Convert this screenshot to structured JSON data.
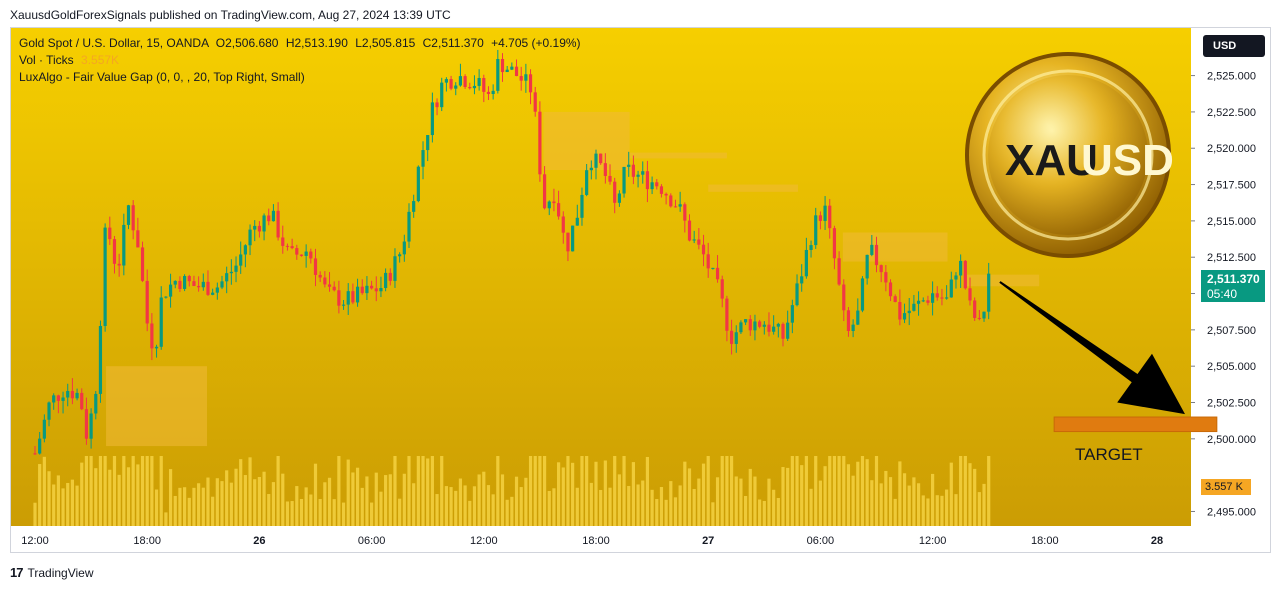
{
  "publication": "XauusdGoldForexSignals published on TradingView.com, Aug 27, 2024 13:39 UTC",
  "legend": {
    "symbol": "Gold Spot / U.S. Dollar, 15, OANDA",
    "open": "O2,506.680",
    "high": "H2,513.190",
    "low": "L2,505.815",
    "close": "C2,511.370",
    "change": "+4.705 (+0.19%)",
    "volume_label": "Vol · Ticks",
    "volume_value": "3.557K",
    "indicator": "LuxAlgo - Fair Value Gap (0, 0, , 20, Top Right, Small)"
  },
  "currency": "USD",
  "current_price": {
    "price": "2,511.370",
    "countdown": "05:40"
  },
  "current_volume": "3.557 K",
  "target_label": "TARGET",
  "logo_text": {
    "left": "XAU",
    "right": "USD"
  },
  "footer": {
    "brand": "TradingView",
    "icon": "tradingview-logo-icon"
  },
  "colors": {
    "background_top": "#f6cf00",
    "background_bottom": "#c99a04",
    "candle_up": "#089981",
    "candle_down": "#f23645",
    "volume": "#f9d84a",
    "fvg_zone": "#f0ba38",
    "target_zone": "#e07b10",
    "arrow": "#000000"
  },
  "chart_data": {
    "type": "candlestick",
    "title": "Gold Spot / U.S. Dollar, 15, OANDA",
    "y_range": [
      2494.0,
      2528.0
    ],
    "y_ticks": [
      "2,495.000",
      "2,500.000",
      "2,502.500",
      "2,505.000",
      "2,507.500",
      "2,510.000",
      "2,512.500",
      "2,515.000",
      "2,517.500",
      "2,520.000",
      "2,522.500",
      "2,525.000"
    ],
    "y_tick_values": [
      2495.0,
      2500.0,
      2502.5,
      2505.0,
      2507.5,
      2510.0,
      2512.5,
      2515.0,
      2517.5,
      2520.0,
      2522.5,
      2525.0
    ],
    "x_ticks": [
      "12:00",
      "18:00",
      "26",
      "06:00",
      "12:00",
      "18:00",
      "27",
      "06:00",
      "12:00",
      "18:00",
      "28"
    ],
    "x_tick_hours": [
      0,
      6,
      12,
      18,
      24,
      30,
      36,
      42,
      48,
      54,
      60
    ],
    "close_path": [
      {
        "h": 0.0,
        "p": 2499.0
      },
      {
        "h": 0.8,
        "p": 2502.5
      },
      {
        "h": 1.6,
        "p": 2503.5
      },
      {
        "h": 2.4,
        "p": 2503.0
      },
      {
        "h": 2.8,
        "p": 2500.0
      },
      {
        "h": 3.3,
        "p": 2504.0
      },
      {
        "h": 3.8,
        "p": 2515.0
      },
      {
        "h": 4.4,
        "p": 2511.5
      },
      {
        "h": 5.0,
        "p": 2516.0
      },
      {
        "h": 5.5,
        "p": 2513.5
      },
      {
        "h": 6.0,
        "p": 2508.0
      },
      {
        "h": 6.4,
        "p": 2506.0
      },
      {
        "h": 6.8,
        "p": 2510.0
      },
      {
        "h": 7.6,
        "p": 2511.0
      },
      {
        "h": 8.6,
        "p": 2510.5
      },
      {
        "h": 9.8,
        "p": 2510.5
      },
      {
        "h": 10.8,
        "p": 2512.0
      },
      {
        "h": 11.6,
        "p": 2514.5
      },
      {
        "h": 12.6,
        "p": 2515.5
      },
      {
        "h": 13.6,
        "p": 2512.5
      },
      {
        "h": 14.6,
        "p": 2513.0
      },
      {
        "h": 15.6,
        "p": 2510.0
      },
      {
        "h": 16.6,
        "p": 2509.5
      },
      {
        "h": 17.6,
        "p": 2510.0
      },
      {
        "h": 18.6,
        "p": 2510.5
      },
      {
        "h": 19.6,
        "p": 2513.0
      },
      {
        "h": 20.4,
        "p": 2518.0
      },
      {
        "h": 21.2,
        "p": 2522.5
      },
      {
        "h": 21.8,
        "p": 2524.5
      },
      {
        "h": 22.6,
        "p": 2525.0
      },
      {
        "h": 23.6,
        "p": 2524.5
      },
      {
        "h": 24.3,
        "p": 2523.5
      },
      {
        "h": 24.8,
        "p": 2526.0
      },
      {
        "h": 25.8,
        "p": 2525.0
      },
      {
        "h": 26.6,
        "p": 2524.0
      },
      {
        "h": 27.2,
        "p": 2516.0
      },
      {
        "h": 27.8,
        "p": 2517.0
      },
      {
        "h": 28.4,
        "p": 2513.0
      },
      {
        "h": 29.0,
        "p": 2515.5
      },
      {
        "h": 29.6,
        "p": 2519.5
      },
      {
        "h": 30.4,
        "p": 2518.5
      },
      {
        "h": 31.0,
        "p": 2516.0
      },
      {
        "h": 31.6,
        "p": 2518.5
      },
      {
        "h": 32.4,
        "p": 2518.0
      },
      {
        "h": 33.4,
        "p": 2517.5
      },
      {
        "h": 34.4,
        "p": 2516.0
      },
      {
        "h": 35.0,
        "p": 2514.0
      },
      {
        "h": 35.8,
        "p": 2512.5
      },
      {
        "h": 36.6,
        "p": 2510.0
      },
      {
        "h": 37.2,
        "p": 2507.0
      },
      {
        "h": 38.0,
        "p": 2508.0
      },
      {
        "h": 39.0,
        "p": 2508.0
      },
      {
        "h": 40.0,
        "p": 2507.0
      },
      {
        "h": 40.8,
        "p": 2510.5
      },
      {
        "h": 41.6,
        "p": 2514.5
      },
      {
        "h": 42.2,
        "p": 2516.0
      },
      {
        "h": 42.8,
        "p": 2512.0
      },
      {
        "h": 43.4,
        "p": 2507.0
      },
      {
        "h": 44.0,
        "p": 2508.5
      },
      {
        "h": 44.6,
        "p": 2513.0
      },
      {
        "h": 45.4,
        "p": 2511.5
      },
      {
        "h": 46.2,
        "p": 2508.5
      },
      {
        "h": 47.0,
        "p": 2509.0
      },
      {
        "h": 48.0,
        "p": 2510.0
      },
      {
        "h": 48.8,
        "p": 2509.5
      },
      {
        "h": 49.4,
        "p": 2512.5
      },
      {
        "h": 50.0,
        "p": 2509.0
      },
      {
        "h": 50.6,
        "p": 2507.5
      },
      {
        "h": 51.0,
        "p": 2511.4
      }
    ],
    "fvg_zones": [
      {
        "h_start": 3.8,
        "h_end": 9.2,
        "low": 2499.5,
        "high": 2505.0
      },
      {
        "h_start": 27.2,
        "h_end": 31.8,
        "low": 2518.5,
        "high": 2522.5
      },
      {
        "h_start": 31.8,
        "h_end": 37.0,
        "low": 2519.3,
        "high": 2519.7
      },
      {
        "h_start": 36.0,
        "h_end": 40.8,
        "low": 2517.0,
        "high": 2517.5
      },
      {
        "h_start": 43.2,
        "h_end": 48.8,
        "low": 2512.2,
        "high": 2514.2
      },
      {
        "h_start": 49.8,
        "h_end": 53.7,
        "low": 2510.5,
        "high": 2511.3
      }
    ],
    "target_zone": {
      "h_start": 54.5,
      "h_end": 63.2,
      "low": 2500.5,
      "high": 2501.5
    },
    "arrow": {
      "from_h": 51.6,
      "from_p": 2510.8,
      "to_h": 61.5,
      "to_p": 2501.7
    }
  }
}
